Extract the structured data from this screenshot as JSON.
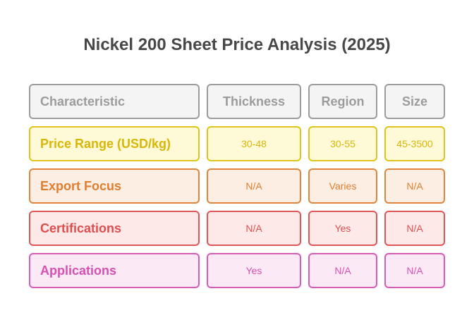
{
  "title": "Nickel 200 Sheet Price Analysis (2025)",
  "header": {
    "characteristic": "Characteristic",
    "thickness": "Thickness",
    "region": "Region",
    "size": "Size"
  },
  "rows": [
    {
      "label": "Price Range (USD/kg)",
      "thickness": "30-48",
      "region": "30-55",
      "size": "45-3500",
      "color": "#d8b70a"
    },
    {
      "label": "Export Focus",
      "thickness": "N/A",
      "region": "Varies",
      "size": "N/A",
      "color": "#e07e2f"
    },
    {
      "label": "Certifications",
      "thickness": "N/A",
      "region": "Yes",
      "size": "N/A",
      "color": "#dd4f4f"
    },
    {
      "label": "Applications",
      "thickness": "Yes",
      "region": "N/A",
      "size": "N/A",
      "color": "#d651b1"
    }
  ]
}
